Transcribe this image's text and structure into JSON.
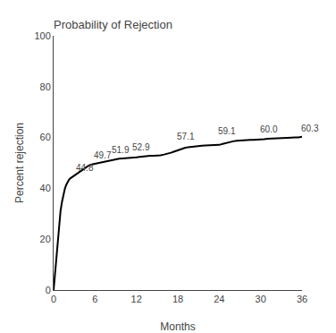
{
  "chart_data": {
    "type": "line",
    "title": "Probability of Rejection",
    "x_label": "Months",
    "y_label": "Percent rejection",
    "xlim": [
      0,
      36
    ],
    "ylim": [
      0,
      100
    ],
    "xticks": [
      0,
      6,
      12,
      18,
      24,
      30,
      36
    ],
    "yticks": [
      0,
      20,
      40,
      60,
      80,
      100
    ],
    "grid": false,
    "color": "#000000",
    "x": [
      0,
      0.05,
      0.1,
      0.15,
      0.2,
      0.3,
      0.4,
      0.5,
      0.6,
      0.7,
      0.8,
      0.9,
      1.0,
      1.2,
      1.4,
      1.6,
      1.8,
      2.0,
      2.2,
      2.4,
      2.6,
      2.8,
      3.0,
      3.5,
      4.0,
      4.5,
      5.0,
      5.5,
      6.0,
      6.5,
      7.0,
      7.5,
      8.0,
      8.5,
      9.0,
      9.5,
      10.0,
      10.5,
      11.0,
      11.5,
      12.0,
      12.5,
      13.0,
      13.5,
      14.0,
      14.5,
      15.0,
      15.5,
      16.0,
      16.5,
      17.0,
      17.5,
      18.0,
      18.5,
      19.0,
      19.5,
      20.0,
      20.5,
      21.0,
      21.5,
      22.0,
      22.5,
      23.0,
      23.5,
      24.0,
      24.5,
      25.0,
      25.5,
      26.0,
      26.5,
      27.0,
      27.5,
      28.0,
      28.5,
      29.0,
      29.5,
      30.0,
      30.5,
      31.0,
      31.5,
      32.0,
      32.5,
      33.0,
      33.5,
      34.0,
      34.5,
      35.0,
      35.5,
      36.0
    ],
    "values": [
      0,
      1.5,
      3.0,
      5.0,
      7.0,
      10.0,
      13.0,
      16.5,
      19.5,
      22.5,
      25.5,
      28.5,
      31.0,
      34.5,
      37.5,
      39.5,
      41.2,
      42.5,
      43.3,
      43.9,
      44.3,
      44.6,
      44.8,
      46.0,
      47.0,
      48.0,
      48.8,
      49.4,
      49.7,
      50.0,
      50.3,
      50.6,
      51.0,
      51.3,
      51.5,
      51.7,
      51.8,
      51.85,
      51.9,
      52.0,
      52.2,
      52.4,
      52.6,
      52.7,
      52.8,
      52.85,
      52.9,
      53.0,
      53.3,
      53.6,
      54.0,
      54.5,
      55.0,
      55.5,
      55.9,
      56.2,
      56.4,
      56.6,
      56.7,
      56.8,
      56.85,
      56.9,
      56.95,
      57.0,
      57.1,
      57.5,
      57.9,
      58.2,
      58.5,
      58.7,
      58.85,
      58.95,
      59.0,
      59.05,
      59.07,
      59.1,
      59.1,
      59.3,
      59.5,
      59.6,
      59.7,
      59.75,
      59.8,
      59.85,
      59.9,
      59.95,
      60.0,
      60.0,
      60.3
    ],
    "annotations": [
      {
        "x": 2.8,
        "y": 44.8,
        "label": "44.8"
      },
      {
        "x": 5.5,
        "y": 49.7,
        "label": "49.7"
      },
      {
        "x": 8.0,
        "y": 51.9,
        "label": "51.9"
      },
      {
        "x": 11.0,
        "y": 52.9,
        "label": "52.9"
      },
      {
        "x": 17.5,
        "y": 57.1,
        "label": "57.1"
      },
      {
        "x": 23.5,
        "y": 59.1,
        "label": "59.1"
      },
      {
        "x": 29.5,
        "y": 60.0,
        "label": "60.0"
      },
      {
        "x": 35.5,
        "y": 60.3,
        "label": "60.3"
      }
    ]
  }
}
